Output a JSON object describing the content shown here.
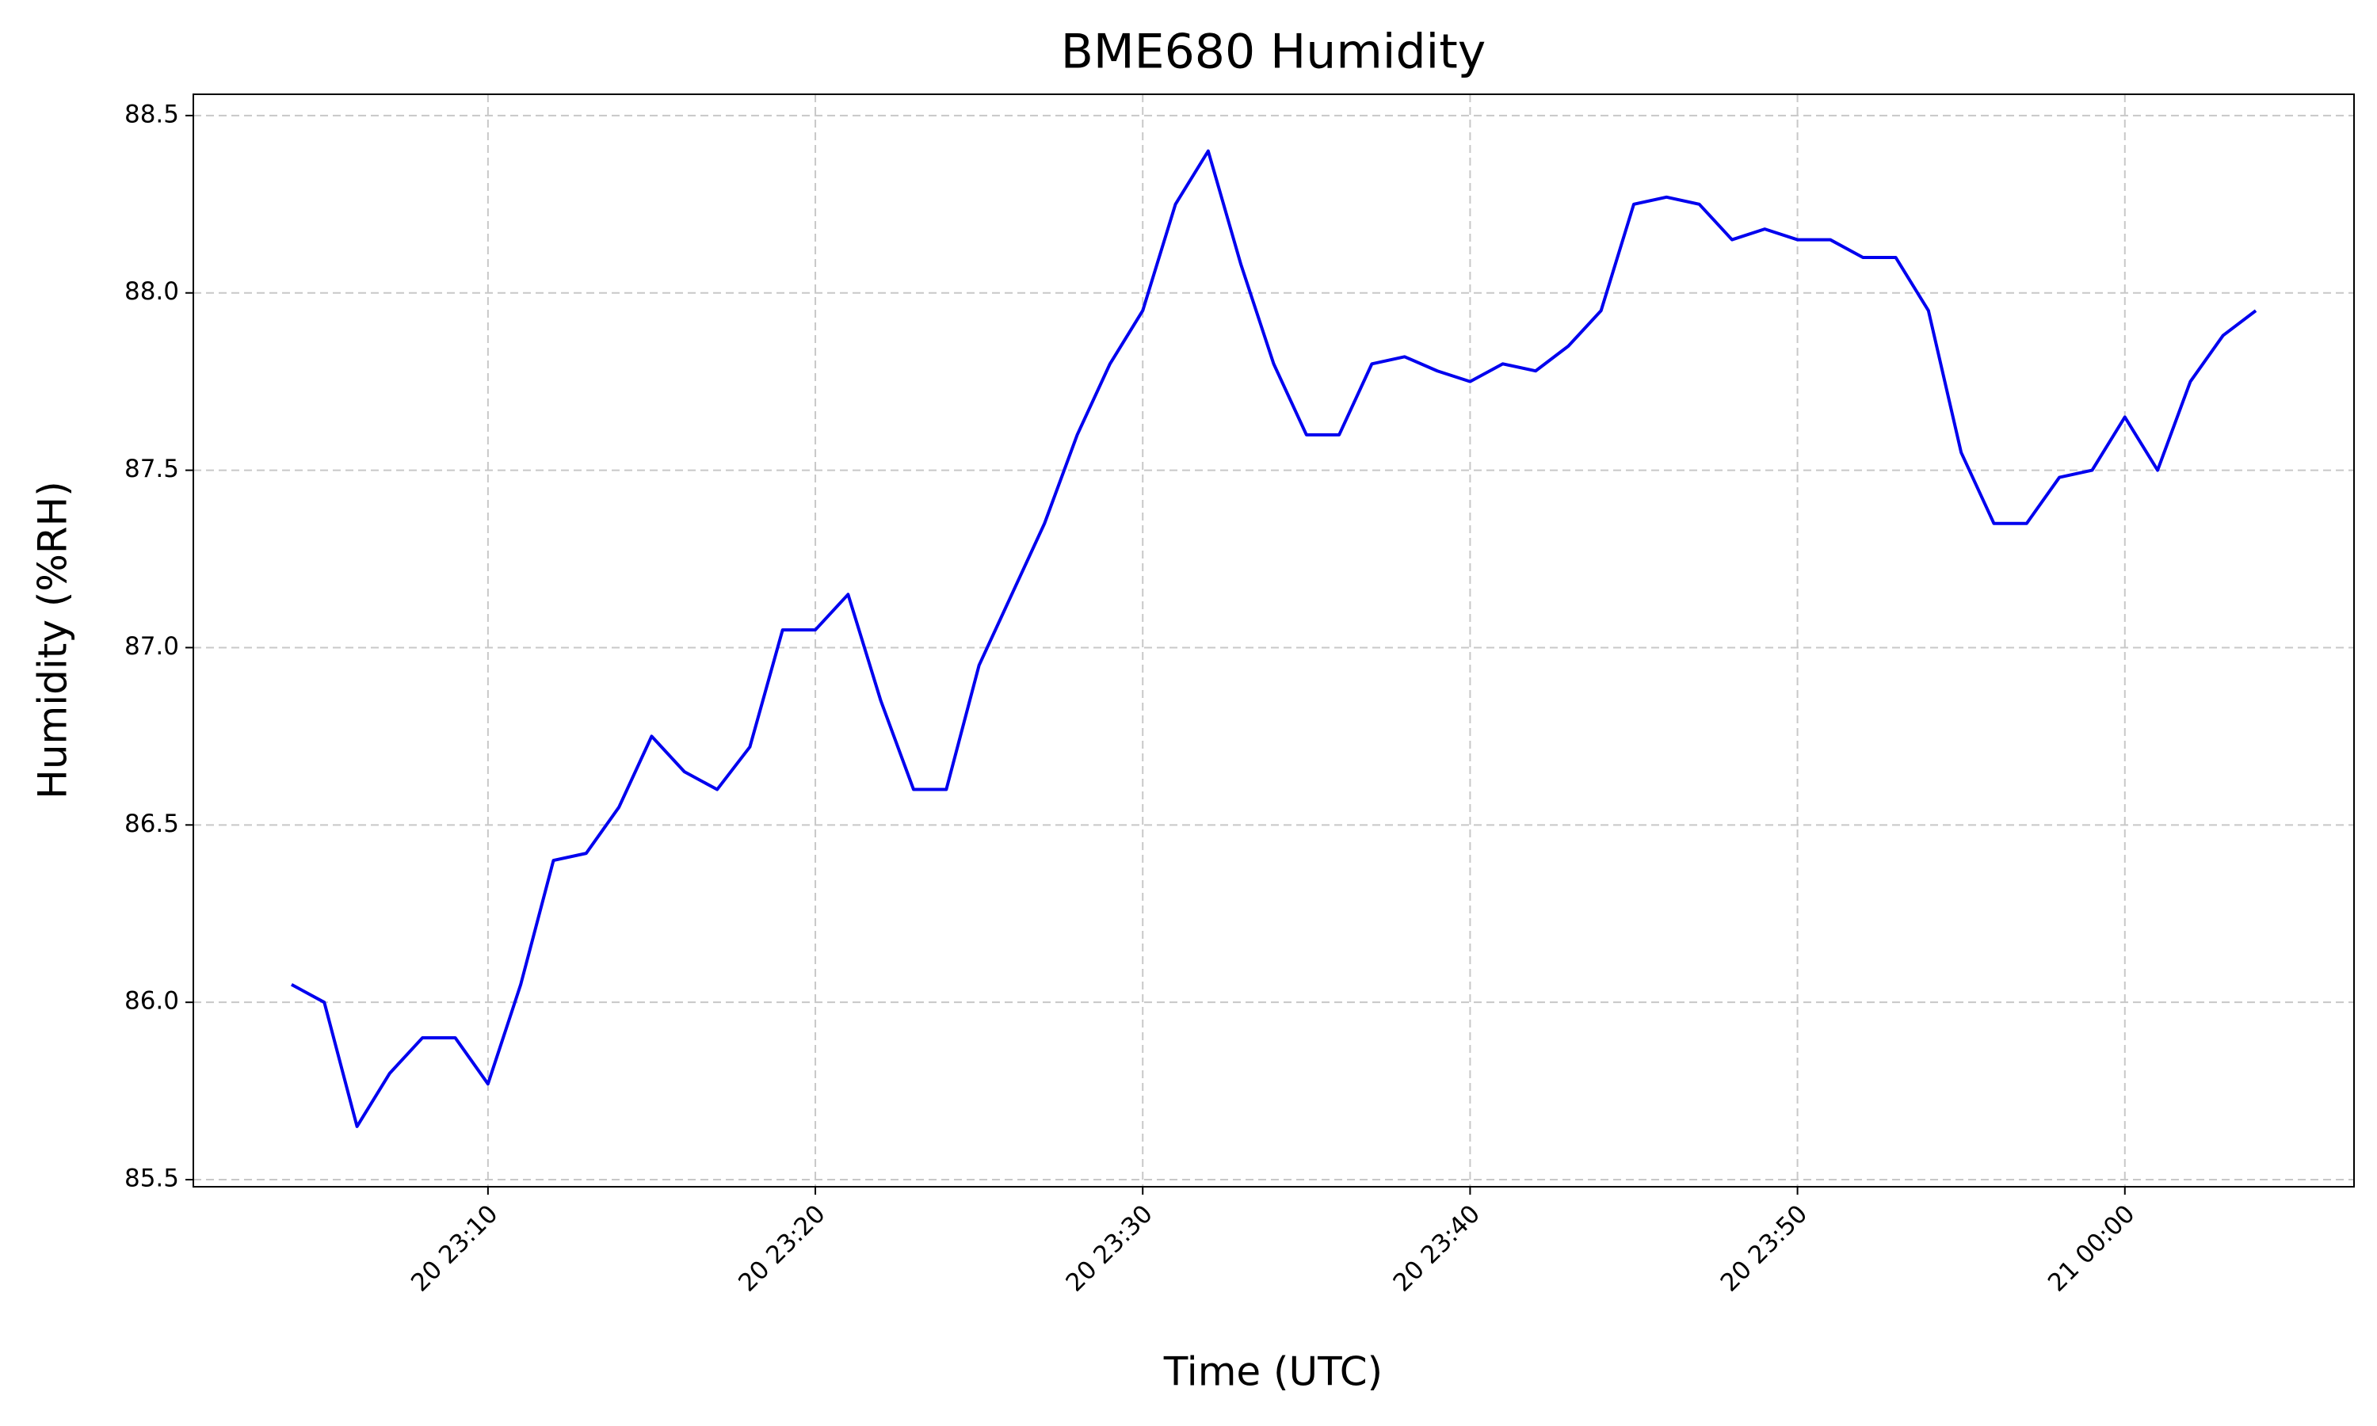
{
  "chart_data": {
    "type": "line",
    "title": "BME680 Humidity",
    "x_label": "Time (UTC)",
    "y_label": "Humidity (%RH)",
    "x": [
      "20 23:04",
      "20 23:05",
      "20 23:06",
      "20 23:07",
      "20 23:08",
      "20 23:09",
      "20 23:10",
      "20 23:11",
      "20 23:12",
      "20 23:13",
      "20 23:14",
      "20 23:15",
      "20 23:16",
      "20 23:17",
      "20 23:18",
      "20 23:19",
      "20 23:20",
      "20 23:21",
      "20 23:22",
      "20 23:23",
      "20 23:24",
      "20 23:25",
      "20 23:26",
      "20 23:27",
      "20 23:28",
      "20 23:29",
      "20 23:30",
      "20 23:31",
      "20 23:32",
      "20 23:33",
      "20 23:34",
      "20 23:35",
      "20 23:36",
      "20 23:37",
      "20 23:38",
      "20 23:39",
      "20 23:40",
      "20 23:41",
      "20 23:42",
      "20 23:43",
      "20 23:44",
      "20 23:45",
      "20 23:46",
      "20 23:47",
      "20 23:48",
      "20 23:49",
      "20 23:50",
      "20 23:51",
      "20 23:52",
      "20 23:53",
      "20 23:54",
      "20 23:55",
      "20 23:56",
      "20 23:57",
      "20 23:58",
      "20 23:59",
      "21 00:00",
      "21 00:01",
      "21 00:02",
      "21 00:03",
      "21 00:04"
    ],
    "series": [
      {
        "color": "#0000ee",
        "values": [
          86.05,
          86.0,
          85.65,
          85.8,
          85.9,
          85.9,
          85.77,
          86.05,
          86.4,
          86.42,
          86.55,
          86.75,
          86.65,
          86.6,
          86.72,
          87.05,
          87.05,
          87.15,
          86.85,
          86.6,
          86.6,
          86.95,
          87.15,
          87.35,
          87.6,
          87.8,
          87.95,
          88.25,
          88.4,
          88.08,
          87.8,
          87.6,
          87.6,
          87.8,
          87.82,
          87.78,
          87.75,
          87.8,
          87.78,
          87.85,
          87.95,
          88.25,
          88.27,
          88.25,
          88.15,
          88.18,
          88.15,
          88.15,
          88.1,
          88.1,
          87.95,
          87.55,
          87.35,
          87.35,
          87.48,
          87.5,
          87.65,
          87.5,
          87.75,
          87.88,
          87.95
        ]
      }
    ],
    "xlim": [
      "20 23:01",
      "21 00:07"
    ],
    "xticks": [
      "20 23:10",
      "20 23:20",
      "20 23:30",
      "20 23:40",
      "20 23:50",
      "21 00:00"
    ],
    "ylim": [
      85.48,
      88.56
    ],
    "yticks": [
      85.5,
      {
        "value": 86,
        "label": "86.0"
      },
      86.5,
      {
        "value": 87,
        "label": "87.0"
      },
      87.5,
      {
        "value": 88,
        "label": "88.0"
      },
      88.5
    ],
    "grid": true
  }
}
